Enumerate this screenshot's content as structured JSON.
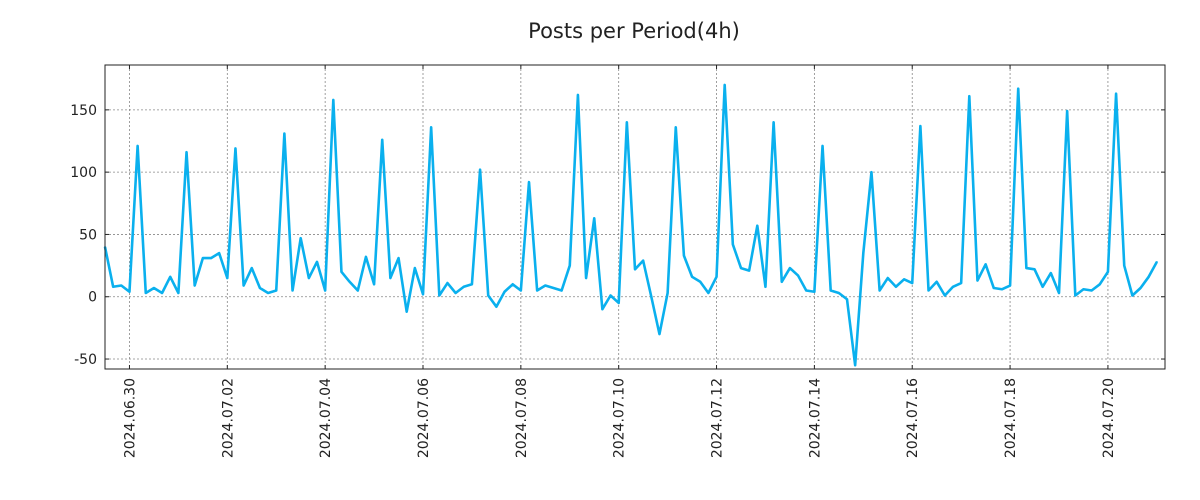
{
  "chart_data": {
    "type": "line",
    "title": "Posts per Period(4h)",
    "xlabel": "",
    "ylabel": "",
    "line_color": "#0ab0ee",
    "x_unit": "4-hour periods starting 2024.06.29 20:00",
    "xlim": [
      0,
      130
    ],
    "ylim": [
      -58,
      186
    ],
    "grid": true,
    "x_ticks": [
      {
        "label": "2024.06.30",
        "x": 3
      },
      {
        "label": "2024.07.02",
        "x": 15
      },
      {
        "label": "2024.07.04",
        "x": 27
      },
      {
        "label": "2024.07.06",
        "x": 39
      },
      {
        "label": "2024.07.08",
        "x": 51
      },
      {
        "label": "2024.07.10",
        "x": 63
      },
      {
        "label": "2024.07.12",
        "x": 75
      },
      {
        "label": "2024.07.14",
        "x": 87
      },
      {
        "label": "2024.07.16",
        "x": 99
      },
      {
        "label": "2024.07.18",
        "x": 111
      },
      {
        "label": "2024.07.20",
        "x": 123
      }
    ],
    "y_ticks": [
      {
        "label": "150",
        "value": 150
      },
      {
        "label": "100",
        "value": 100
      },
      {
        "label": "50",
        "value": 50
      },
      {
        "label": "0",
        "value": 0
      },
      {
        "label": "-50",
        "value": -50
      }
    ],
    "series": [
      {
        "name": "posts",
        "values": [
          40,
          8,
          9,
          4,
          121,
          3,
          7,
          3,
          16,
          3,
          116,
          9,
          31,
          31,
          35,
          15,
          119,
          9,
          23,
          7,
          3,
          5,
          131,
          5,
          47,
          15,
          28,
          5,
          158,
          20,
          12,
          5,
          32,
          10,
          126,
          15,
          31,
          -12,
          23,
          2,
          136,
          1,
          11,
          3,
          8,
          10,
          102,
          1,
          -8,
          4,
          10,
          5,
          92,
          5,
          9,
          7,
          5,
          25,
          162,
          15,
          63,
          -10,
          1,
          -5,
          140,
          22,
          29,
          0,
          -30,
          3,
          136,
          33,
          16,
          12,
          3,
          16,
          170,
          42,
          23,
          21,
          57,
          8,
          140,
          12,
          23,
          17,
          5,
          4,
          121,
          5,
          3,
          -2,
          -55,
          35,
          100,
          5,
          15,
          8,
          14,
          11,
          137,
          5,
          12,
          1,
          8,
          11,
          161,
          13,
          26,
          7,
          6,
          9,
          167,
          23,
          22,
          8,
          19,
          3,
          149,
          1,
          6,
          5,
          10,
          20,
          163,
          25,
          1,
          7,
          16,
          28
        ]
      }
    ]
  }
}
